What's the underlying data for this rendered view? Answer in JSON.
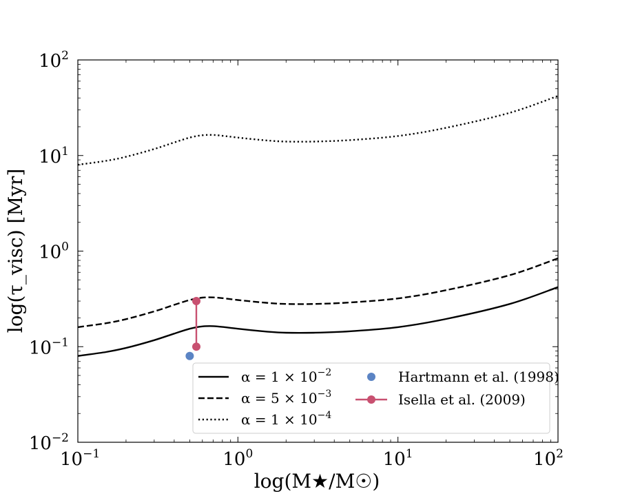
{
  "chart_data": {
    "type": "line",
    "xscale": "log",
    "yscale": "log",
    "xlim": [
      0.1,
      100
    ],
    "ylim": [
      0.01,
      100
    ],
    "xlabel": "log(M★/M☉)",
    "ylabel": "log(τ_visc) [Myr]",
    "x_tick_labels": [
      {
        "value": 0.1,
        "base": "10",
        "exp": "−1"
      },
      {
        "value": 1,
        "base": "10",
        "exp": "0"
      },
      {
        "value": 10,
        "base": "10",
        "exp": "1"
      },
      {
        "value": 100,
        "base": "10",
        "exp": "2"
      }
    ],
    "y_tick_labels": [
      {
        "value": 0.01,
        "base": "10",
        "exp": "−2"
      },
      {
        "value": 0.1,
        "base": "10",
        "exp": "−1"
      },
      {
        "value": 1,
        "base": "10",
        "exp": "0"
      },
      {
        "value": 10,
        "base": "10",
        "exp": "1"
      },
      {
        "value": 100,
        "base": "10",
        "exp": "2"
      }
    ],
    "series": [
      {
        "name": "α = 1 × 10⁻²",
        "legend_math": {
          "prefix": "α = 1 × 10",
          "exp": "−2"
        },
        "style": "solid",
        "color": "#000000",
        "x": [
          0.1,
          0.15,
          0.2,
          0.3,
          0.4,
          0.5,
          0.6,
          0.7,
          0.8,
          1.0,
          1.5,
          2.0,
          3.0,
          5.0,
          10,
          20,
          50,
          100
        ],
        "y": [
          0.08,
          0.088,
          0.097,
          0.117,
          0.137,
          0.154,
          0.163,
          0.164,
          0.161,
          0.154,
          0.144,
          0.14,
          0.14,
          0.145,
          0.16,
          0.195,
          0.28,
          0.42
        ]
      },
      {
        "name": "α = 5 × 10⁻³",
        "legend_math": {
          "prefix": "α = 5 × 10",
          "exp": "−3"
        },
        "style": "dashed",
        "color": "#000000",
        "x": [
          0.1,
          0.15,
          0.2,
          0.3,
          0.4,
          0.5,
          0.6,
          0.7,
          0.8,
          1.0,
          1.5,
          2.0,
          3.0,
          5.0,
          10,
          20,
          50,
          100
        ],
        "y": [
          0.16,
          0.176,
          0.194,
          0.234,
          0.274,
          0.308,
          0.326,
          0.328,
          0.322,
          0.308,
          0.288,
          0.28,
          0.28,
          0.29,
          0.32,
          0.39,
          0.56,
          0.84
        ]
      },
      {
        "name": "α = 1 × 10⁻⁴",
        "legend_math": {
          "prefix": "α = 1 × 10",
          "exp": "−4"
        },
        "style": "dotted",
        "color": "#000000",
        "x": [
          0.1,
          0.15,
          0.2,
          0.3,
          0.4,
          0.5,
          0.6,
          0.7,
          0.8,
          1.0,
          1.5,
          2.0,
          3.0,
          5.0,
          10,
          20,
          50,
          100
        ],
        "y": [
          8.0,
          8.8,
          9.7,
          11.7,
          13.7,
          15.4,
          16.3,
          16.4,
          16.1,
          15.4,
          14.4,
          14.0,
          14.0,
          14.5,
          16.0,
          19.5,
          28.0,
          42.0
        ]
      }
    ],
    "points": [
      {
        "name": "Hartmann et al. (1998)",
        "color": "#5b84c4",
        "x": [
          0.5
        ],
        "y": [
          0.08
        ],
        "connected": false
      },
      {
        "name": "Isella et al. (2009)",
        "color": "#c85070",
        "x": [
          0.55,
          0.55
        ],
        "y": [
          0.1,
          0.3
        ],
        "connected": true
      }
    ],
    "legend_position": "lower-right"
  }
}
